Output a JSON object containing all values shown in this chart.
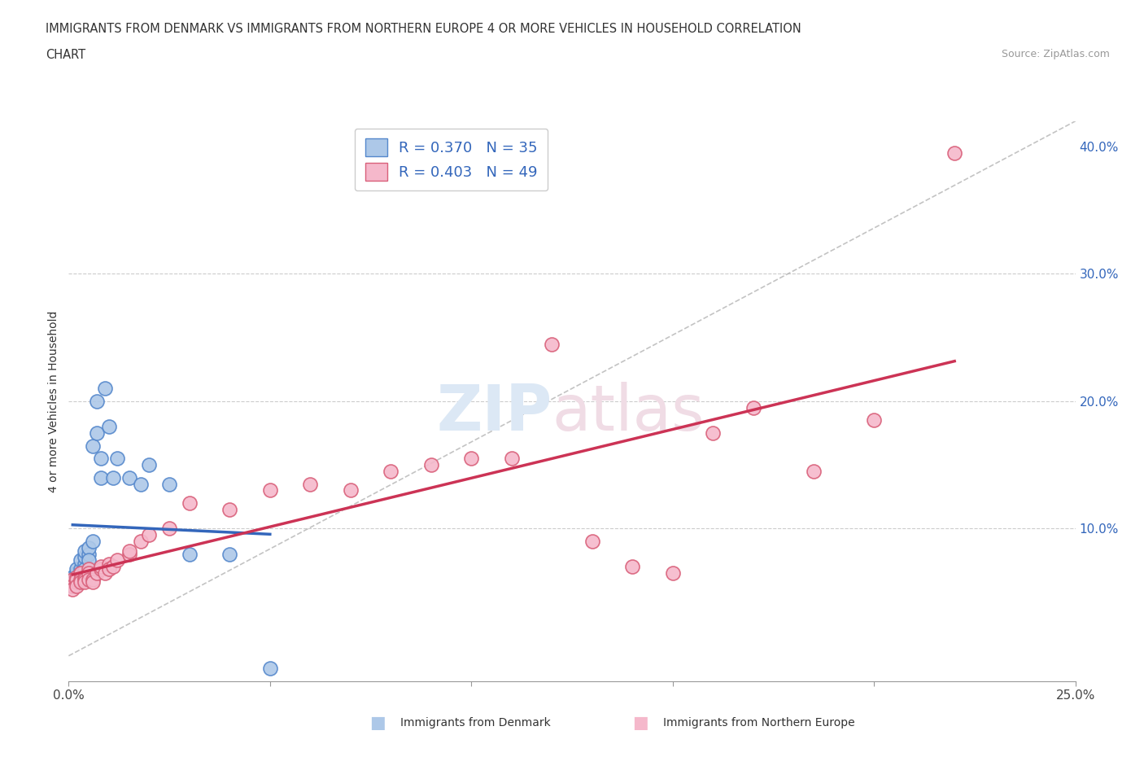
{
  "title_line1": "IMMIGRANTS FROM DENMARK VS IMMIGRANTS FROM NORTHERN EUROPE 4 OR MORE VEHICLES IN HOUSEHOLD CORRELATION",
  "title_line2": "CHART",
  "source_text": "Source: ZipAtlas.com",
  "ylabel": "4 or more Vehicles in Household",
  "xlim": [
    0.0,
    0.25
  ],
  "ylim": [
    -0.02,
    0.42
  ],
  "yticks": [
    0.0,
    0.1,
    0.2,
    0.3,
    0.4
  ],
  "ytick_labels": [
    "",
    "10.0%",
    "20.0%",
    "30.0%",
    "40.0%"
  ],
  "xticks": [
    0.0,
    0.05,
    0.1,
    0.15,
    0.2,
    0.25
  ],
  "xtick_labels": [
    "0.0%",
    "",
    "",
    "",
    "",
    "25.0%"
  ],
  "denmark_color": "#adc8e8",
  "northern_europe_color": "#f5b8cb",
  "denmark_edge_color": "#5588cc",
  "northern_europe_edge_color": "#d9607a",
  "trend_denmark_color": "#3366bb",
  "trend_ne_color": "#cc3355",
  "legend_R_denmark": "R = 0.370",
  "legend_N_denmark": "N = 35",
  "legend_R_ne": "R = 0.403",
  "legend_N_ne": "N = 49",
  "grid_color": "#cccccc",
  "ref_line_color": "#aaaaaa",
  "denmark_x": [
    0.001,
    0.001,
    0.001,
    0.002,
    0.002,
    0.002,
    0.002,
    0.003,
    0.003,
    0.003,
    0.003,
    0.004,
    0.004,
    0.004,
    0.004,
    0.005,
    0.005,
    0.005,
    0.006,
    0.006,
    0.007,
    0.007,
    0.008,
    0.008,
    0.009,
    0.01,
    0.011,
    0.012,
    0.015,
    0.018,
    0.02,
    0.025,
    0.03,
    0.04,
    0.05
  ],
  "denmark_y": [
    0.062,
    0.058,
    0.055,
    0.065,
    0.068,
    0.06,
    0.062,
    0.068,
    0.075,
    0.058,
    0.065,
    0.072,
    0.078,
    0.082,
    0.068,
    0.08,
    0.085,
    0.075,
    0.09,
    0.165,
    0.175,
    0.2,
    0.14,
    0.155,
    0.21,
    0.18,
    0.14,
    0.155,
    0.14,
    0.135,
    0.15,
    0.135,
    0.08,
    0.08,
    -0.01
  ],
  "ne_x": [
    0.001,
    0.001,
    0.001,
    0.002,
    0.002,
    0.002,
    0.002,
    0.003,
    0.003,
    0.003,
    0.004,
    0.004,
    0.004,
    0.005,
    0.005,
    0.005,
    0.006,
    0.006,
    0.007,
    0.008,
    0.008,
    0.009,
    0.01,
    0.01,
    0.011,
    0.012,
    0.015,
    0.015,
    0.018,
    0.02,
    0.025,
    0.03,
    0.04,
    0.05,
    0.06,
    0.07,
    0.08,
    0.09,
    0.1,
    0.11,
    0.12,
    0.13,
    0.14,
    0.15,
    0.16,
    0.17,
    0.185,
    0.2,
    0.22
  ],
  "ne_y": [
    0.06,
    0.055,
    0.052,
    0.058,
    0.062,
    0.06,
    0.055,
    0.065,
    0.06,
    0.058,
    0.062,
    0.06,
    0.058,
    0.068,
    0.065,
    0.06,
    0.06,
    0.058,
    0.065,
    0.068,
    0.07,
    0.065,
    0.072,
    0.068,
    0.07,
    0.075,
    0.08,
    0.082,
    0.09,
    0.095,
    0.1,
    0.12,
    0.115,
    0.13,
    0.135,
    0.13,
    0.145,
    0.15,
    0.155,
    0.155,
    0.245,
    0.09,
    0.07,
    0.065,
    0.175,
    0.195,
    0.145,
    0.185,
    0.395
  ]
}
